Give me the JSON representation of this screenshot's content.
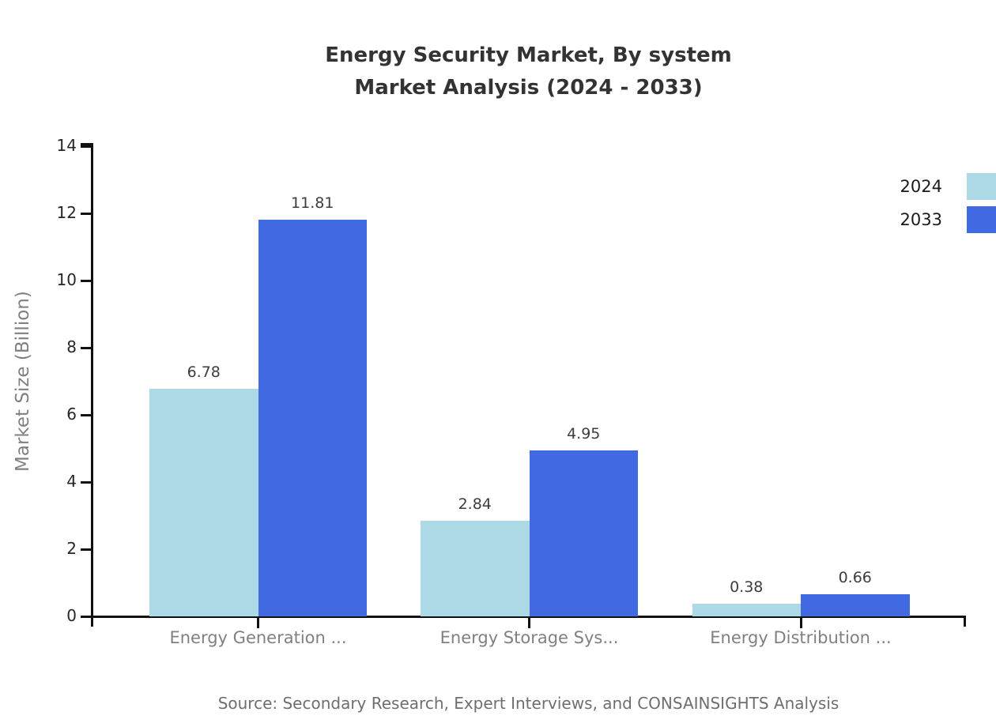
{
  "chart": {
    "title_line1": "Energy Security Market, By system",
    "title_line2": "Market Analysis (2024 - 2033)",
    "ylabel": "Market Size (Billion)",
    "source": "Source: Secondary Research, Expert Interviews, and CONSAINSIGHTS Analysis"
  },
  "chart_data": {
    "type": "bar",
    "title": "Energy Security Market, By system Market Analysis (2024 - 2033)",
    "categories": [
      "Energy Generation ...",
      "Energy Storage Sys...",
      "Energy Distribution ..."
    ],
    "series": [
      {
        "name": "2024",
        "color": "#ADD8E6",
        "values": [
          6.78,
          2.84,
          0.38
        ]
      },
      {
        "name": "2033",
        "color": "#4169E1",
        "values": [
          11.81,
          4.95,
          0.66
        ]
      }
    ],
    "value_labels": [
      "6.78",
      "11.81",
      "2.84",
      "4.95",
      "0.38",
      "0.66"
    ],
    "xlabel": "",
    "ylabel": "Market Size (Billion)",
    "ylim": [
      0,
      14
    ],
    "yticks": [
      0,
      2,
      4,
      6,
      8,
      10,
      12,
      14
    ],
    "grid": false,
    "legend_position": "upper right",
    "axis_color": "#111111",
    "tick_label_color": "#262626",
    "category_label_color": "#808080",
    "value_label_color": "#3d3d3d"
  }
}
